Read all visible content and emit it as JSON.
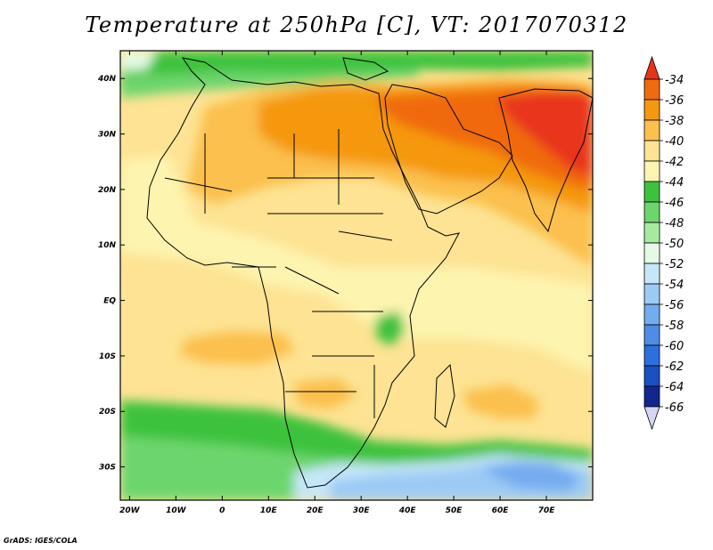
{
  "title": "Temperature at 250hPa [C], VT: 2017070312",
  "credit": "GrADS: IGES/COLA",
  "variable": "Temperature",
  "pressure_level": "250hPa",
  "units": "C",
  "valid_time": "2017070312",
  "map": {
    "region": "Africa, Arabian Peninsula and South Asia",
    "lat_range": [
      -36,
      45
    ],
    "lon_range": [
      -22,
      80
    ],
    "lat_labels": [
      {
        "value": 40,
        "text": "40N"
      },
      {
        "value": 30,
        "text": "30N"
      },
      {
        "value": 20,
        "text": "20N"
      },
      {
        "value": 10,
        "text": "10N"
      },
      {
        "value": 0,
        "text": "EQ"
      },
      {
        "value": -10,
        "text": "10S"
      },
      {
        "value": -20,
        "text": "20S"
      },
      {
        "value": -30,
        "text": "30S"
      }
    ],
    "lon_labels": [
      {
        "value": -20,
        "text": "20W"
      },
      {
        "value": -10,
        "text": "10W"
      },
      {
        "value": 0,
        "text": "0"
      },
      {
        "value": 10,
        "text": "10E"
      },
      {
        "value": 20,
        "text": "20E"
      },
      {
        "value": 30,
        "text": "30E"
      },
      {
        "value": 40,
        "text": "40E"
      },
      {
        "value": 50,
        "text": "50E"
      },
      {
        "value": 60,
        "text": "60E"
      },
      {
        "value": 70,
        "text": "70E"
      }
    ]
  },
  "colorbar": {
    "levels": [
      "-34",
      "-36",
      "-38",
      "-40",
      "-42",
      "-44",
      "-46",
      "-48",
      "-50",
      "-52",
      "-54",
      "-56",
      "-58",
      "-60",
      "-62",
      "-64",
      "-66"
    ],
    "colors": [
      "#e8351a",
      "#f06a0f",
      "#f5980f",
      "#fbc04e",
      "#fde393",
      "#fdf6b2",
      "#3dc23d",
      "#6dd56d",
      "#a5eaa0",
      "#e4fae4",
      "#c6e7f8",
      "#9dcaf5",
      "#74acf0",
      "#4f8ce8",
      "#2e6fde",
      "#1a50bf",
      "#12268f",
      "#d5d6f5"
    ]
  }
}
